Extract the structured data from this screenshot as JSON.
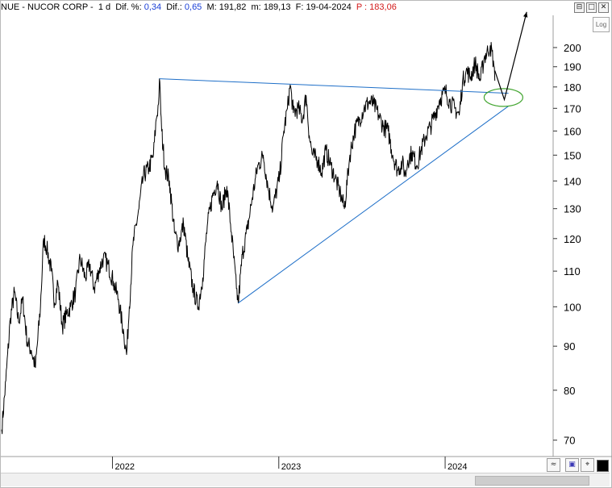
{
  "header": {
    "symbol": "NUE - NUCOR CORP -",
    "interval": "1 d",
    "dif_pct_label": "Dif. %:",
    "dif_pct_value": "0,34",
    "dif_label": "Dif.:",
    "dif_value": "0,65",
    "max_label": "M:",
    "max_value": "191,82",
    "min_label": "m:",
    "min_value": "189,13",
    "date_label": "F:",
    "date_value": "19-04-2024",
    "price_label": "P :",
    "price_value": "183,06"
  },
  "window_buttons": [
    "⊟",
    "□",
    "✕"
  ],
  "log_button": "Log",
  "colors": {
    "price": "#000000",
    "trendline": "#1e6fc8",
    "ellipse": "#44a632",
    "arrow": "#000000",
    "header_blue": "#1a3fd6",
    "header_red": "#d31a1a"
  },
  "toolbar_icons": [
    "wave-icon",
    "save-icon",
    "crosshair-icon",
    "color-swatch"
  ],
  "chart_data": {
    "type": "line",
    "scale": "log",
    "ylim": [
      67,
      218
    ],
    "x_range": [
      "2021-05-01",
      "2024-08-25"
    ],
    "y_ticks": [
      70,
      80,
      90,
      100,
      110,
      120,
      130,
      140,
      150,
      160,
      170,
      180,
      190,
      200
    ],
    "x_ticks": [
      {
        "date": "2022-01-01",
        "label": "2022"
      },
      {
        "date": "2023-01-01",
        "label": "2023"
      },
      {
        "date": "2024-01-01",
        "label": "2024"
      }
    ],
    "grid": false,
    "series": [
      {
        "values": [
          [
            "2021-05-03",
            72
          ],
          [
            "2021-05-12",
            82
          ],
          [
            "2021-05-22",
            97
          ],
          [
            "2021-05-31",
            104
          ],
          [
            "2021-06-09",
            96
          ],
          [
            "2021-06-18",
            102
          ],
          [
            "2021-06-28",
            91
          ],
          [
            "2021-07-07",
            89
          ],
          [
            "2021-07-16",
            85
          ],
          [
            "2021-07-27",
            100
          ],
          [
            "2021-08-03",
            120
          ],
          [
            "2021-08-10",
            117
          ],
          [
            "2021-08-20",
            110
          ],
          [
            "2021-08-27",
            101
          ],
          [
            "2021-09-03",
            107
          ],
          [
            "2021-09-13",
            95
          ],
          [
            "2021-09-22",
            98
          ],
          [
            "2021-10-01",
            100
          ],
          [
            "2021-10-12",
            104
          ],
          [
            "2021-10-22",
            114
          ],
          [
            "2021-11-02",
            108
          ],
          [
            "2021-11-12",
            112
          ],
          [
            "2021-11-22",
            105
          ],
          [
            "2021-12-02",
            110
          ],
          [
            "2021-12-12",
            114
          ],
          [
            "2021-12-22",
            112
          ],
          [
            "2022-01-03",
            107
          ],
          [
            "2022-01-14",
            102
          ],
          [
            "2022-01-26",
            93
          ],
          [
            "2022-02-01",
            88
          ],
          [
            "2022-02-07",
            100
          ],
          [
            "2022-02-15",
            118
          ],
          [
            "2022-02-28",
            130
          ],
          [
            "2022-03-10",
            142
          ],
          [
            "2022-03-22",
            145
          ],
          [
            "2022-04-01",
            150
          ],
          [
            "2022-04-07",
            165
          ],
          [
            "2022-04-12",
            172
          ],
          [
            "2022-04-14",
            184
          ],
          [
            "2022-04-19",
            160
          ],
          [
            "2022-04-26",
            145
          ],
          [
            "2022-05-06",
            140
          ],
          [
            "2022-05-17",
            122
          ],
          [
            "2022-05-26",
            118
          ],
          [
            "2022-06-06",
            125
          ],
          [
            "2022-06-16",
            113
          ],
          [
            "2022-06-27",
            105
          ],
          [
            "2022-07-08",
            100
          ],
          [
            "2022-07-18",
            108
          ],
          [
            "2022-07-28",
            124
          ],
          [
            "2022-08-08",
            134
          ],
          [
            "2022-08-19",
            140
          ],
          [
            "2022-08-29",
            130
          ],
          [
            "2022-09-09",
            138
          ],
          [
            "2022-09-19",
            122
          ],
          [
            "2022-09-30",
            105
          ],
          [
            "2022-10-04",
            101
          ],
          [
            "2022-10-13",
            115
          ],
          [
            "2022-10-24",
            123
          ],
          [
            "2022-11-03",
            133
          ],
          [
            "2022-11-15",
            145
          ],
          [
            "2022-11-28",
            150
          ],
          [
            "2022-12-08",
            138
          ],
          [
            "2022-12-19",
            130
          ],
          [
            "2023-01-03",
            142
          ],
          [
            "2023-01-12",
            160
          ],
          [
            "2023-01-20",
            170
          ],
          [
            "2023-01-26",
            181
          ],
          [
            "2023-02-02",
            168
          ],
          [
            "2023-02-13",
            170
          ],
          [
            "2023-02-22",
            165
          ],
          [
            "2023-03-02",
            176
          ],
          [
            "2023-03-09",
            158
          ],
          [
            "2023-03-16",
            150
          ],
          [
            "2023-03-28",
            148
          ],
          [
            "2023-04-05",
            143
          ],
          [
            "2023-04-14",
            152
          ],
          [
            "2023-04-25",
            146
          ],
          [
            "2023-05-05",
            141
          ],
          [
            "2023-05-15",
            136
          ],
          [
            "2023-05-25",
            130
          ],
          [
            "2023-06-06",
            150
          ],
          [
            "2023-06-16",
            160
          ],
          [
            "2023-06-27",
            165
          ],
          [
            "2023-07-07",
            170
          ],
          [
            "2023-07-18",
            173
          ],
          [
            "2023-07-28",
            172
          ],
          [
            "2023-08-08",
            167
          ],
          [
            "2023-08-18",
            162
          ],
          [
            "2023-08-29",
            160
          ],
          [
            "2023-09-08",
            150
          ],
          [
            "2023-09-19",
            144
          ],
          [
            "2023-09-29",
            147
          ],
          [
            "2023-10-06",
            142
          ],
          [
            "2023-10-11",
            148
          ],
          [
            "2023-10-20",
            151
          ],
          [
            "2023-10-31",
            146
          ],
          [
            "2023-11-09",
            152
          ],
          [
            "2023-11-20",
            158
          ],
          [
            "2023-11-30",
            162
          ],
          [
            "2023-12-11",
            168
          ],
          [
            "2023-12-20",
            174
          ],
          [
            "2024-01-02",
            178
          ],
          [
            "2024-01-11",
            173
          ],
          [
            "2024-01-22",
            170
          ],
          [
            "2024-02-01",
            167
          ],
          [
            "2024-02-08",
            182
          ],
          [
            "2024-02-16",
            188
          ],
          [
            "2024-02-26",
            185
          ],
          [
            "2024-03-07",
            192
          ],
          [
            "2024-03-18",
            183
          ],
          [
            "2024-03-27",
            195
          ],
          [
            "2024-04-04",
            198
          ],
          [
            "2024-04-09",
            201
          ],
          [
            "2024-04-16",
            193
          ],
          [
            "2024-04-19",
            183
          ]
        ]
      }
    ],
    "trendlines": [
      {
        "from": [
          "2022-04-14",
          184
        ],
        "to": [
          "2024-05-19",
          177
        ]
      },
      {
        "from": [
          "2022-10-04",
          101
        ],
        "to": [
          "2024-05-19",
          171
        ]
      }
    ],
    "projection": [
      [
        "2024-04-19",
        188
      ],
      [
        "2024-05-10",
        174
      ],
      [
        "2024-06-28",
        220
      ]
    ],
    "ellipse_center": [
      "2024-05-08",
      175
    ]
  }
}
